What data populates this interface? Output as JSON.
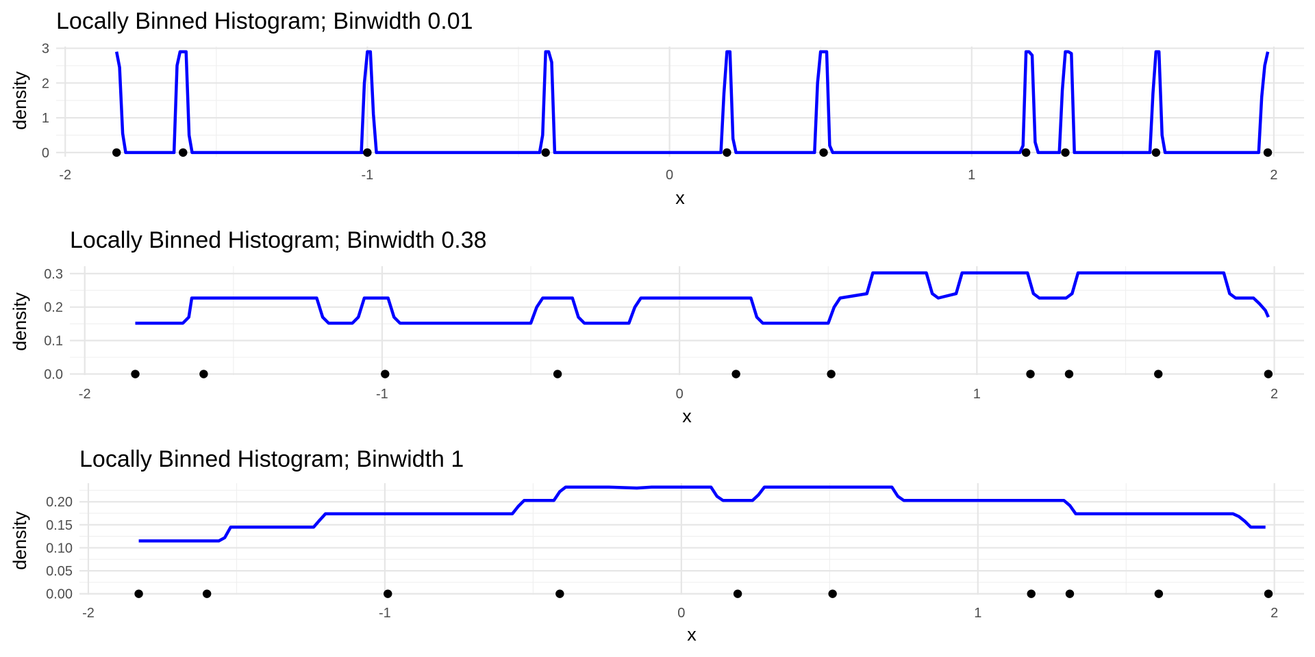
{
  "chart_data": [
    {
      "type": "line",
      "title": "Locally Binned Histogram; Binwidth 0.01",
      "xlabel": "x",
      "ylabel": "density",
      "xlim": [
        -2.03,
        2.1
      ],
      "ylim": [
        -0.12,
        3.05
      ],
      "x_ticks": [
        -2,
        -1,
        0,
        1,
        2
      ],
      "x_tick_labels": [
        "-2",
        "-1",
        "0",
        "1",
        "2"
      ],
      "x_minor_ticks": [
        -1.5,
        -0.5,
        0.5,
        1.5
      ],
      "y_ticks": [
        0,
        1,
        2,
        3
      ],
      "y_tick_labels": [
        "0",
        "1",
        "2",
        "3"
      ],
      "y_minor_ticks": [
        0.5,
        1.5,
        2.5
      ],
      "grid": true,
      "series": [
        {
          "x": [
            -1.83,
            -1.82,
            -1.81,
            -1.8,
            -1.79,
            -1.65,
            -1.64,
            -1.63,
            -1.62,
            -1.61,
            -1.6,
            -1.59,
            -1.58,
            -1.0,
            -1.02,
            -1.01,
            -1.0,
            -0.99,
            -0.98,
            -0.97,
            -0.44,
            -0.43,
            -0.42,
            -0.41,
            -0.4,
            -0.39,
            -0.38,
            0.16,
            0.17,
            0.18,
            0.19,
            0.2,
            0.21,
            0.22,
            0.48,
            0.49,
            0.5,
            0.51,
            0.52,
            0.53,
            0.54,
            1.16,
            1.17,
            1.18,
            1.19,
            1.2,
            1.21,
            1.22,
            1.29,
            1.3,
            1.31,
            1.32,
            1.33,
            1.34,
            1.35,
            1.59,
            1.6,
            1.61,
            1.62,
            1.63,
            1.64,
            1.65,
            1.95,
            1.96,
            1.97,
            1.98
          ],
          "y": [
            2.9,
            2.45,
            0.55,
            0,
            0,
            0,
            0,
            2.5,
            2.9,
            2.9,
            2.9,
            0.5,
            0,
            0,
            0,
            2.0,
            2.9,
            2.9,
            1.1,
            0,
            0,
            0,
            0.5,
            2.9,
            2.9,
            2.6,
            0,
            0,
            0,
            1.7,
            2.9,
            2.9,
            0.4,
            0,
            0,
            2.0,
            2.9,
            2.9,
            2.9,
            0.2,
            0,
            0,
            0.2,
            2.9,
            2.9,
            2.8,
            0.3,
            0,
            0,
            1.8,
            2.9,
            2.9,
            2.85,
            0,
            0,
            0,
            1.7,
            2.9,
            2.9,
            0.5,
            0,
            0,
            0,
            1.6,
            2.5,
            2.9
          ]
        }
      ],
      "points_x": [
        -1.83,
        -1.61,
        -1.0,
        -0.41,
        0.19,
        0.51,
        1.18,
        1.31,
        1.61,
        1.98
      ],
      "points_y": [
        0,
        0,
        0,
        0,
        0,
        0,
        0,
        0,
        0,
        0
      ],
      "colors": {
        "line": "#0000ff",
        "points": "#000000"
      }
    },
    {
      "type": "line",
      "title": "Locally Binned Histogram; Binwidth 0.38",
      "xlabel": "x",
      "ylabel": "density",
      "xlim": [
        -2.05,
        2.1
      ],
      "ylim": [
        -0.003,
        0.322
      ],
      "x_ticks": [
        -2,
        -1,
        0,
        1,
        2
      ],
      "x_tick_labels": [
        "-2",
        "-1",
        "0",
        "1",
        "2"
      ],
      "x_minor_ticks": [
        -1.5,
        -0.5,
        0.5,
        1.5
      ],
      "y_ticks": [
        0,
        0.1,
        0.2,
        0.3
      ],
      "y_tick_labels": [
        "0.0",
        "0.1",
        "0.2",
        "0.3"
      ],
      "y_minor_ticks": [
        0.05,
        0.15,
        0.25
      ],
      "grid": true,
      "series": [
        {
          "x": [
            -1.83,
            -1.67,
            -1.65,
            -1.64,
            -1.22,
            -1.2,
            -1.18,
            -1.1,
            -1.08,
            -1.06,
            -0.98,
            -0.96,
            -0.94,
            -0.5,
            -0.48,
            -0.46,
            -0.36,
            -0.34,
            -0.32,
            -0.17,
            -0.15,
            -0.13,
            0.24,
            0.26,
            0.28,
            0.5,
            0.52,
            0.54,
            0.63,
            0.65,
            0.67,
            0.83,
            0.85,
            0.87,
            0.93,
            0.95,
            0.97,
            1.17,
            1.19,
            1.21,
            1.3,
            1.32,
            1.34,
            1.83,
            1.85,
            1.87,
            1.93,
            1.95,
            1.97,
            1.98
          ],
          "y": [
            0.152,
            0.152,
            0.17,
            0.227,
            0.227,
            0.17,
            0.152,
            0.152,
            0.17,
            0.227,
            0.227,
            0.17,
            0.152,
            0.152,
            0.2,
            0.227,
            0.227,
            0.17,
            0.152,
            0.152,
            0.2,
            0.227,
            0.227,
            0.17,
            0.152,
            0.152,
            0.2,
            0.227,
            0.24,
            0.302,
            0.302,
            0.302,
            0.24,
            0.227,
            0.24,
            0.302,
            0.302,
            0.302,
            0.24,
            0.227,
            0.227,
            0.24,
            0.302,
            0.302,
            0.24,
            0.227,
            0.227,
            0.21,
            0.19,
            0.17
          ]
        }
      ],
      "points_x": [
        -1.83,
        -1.6,
        -0.99,
        -0.41,
        0.19,
        0.51,
        1.18,
        1.31,
        1.61,
        1.98
      ],
      "points_y": [
        0,
        0,
        0,
        0,
        0,
        0,
        0,
        0,
        0,
        0
      ],
      "colors": {
        "line": "#0000ff",
        "points": "#000000"
      }
    },
    {
      "type": "line",
      "title": "Locally Binned Histogram; Binwidth 1",
      "xlabel": "x",
      "ylabel": "density",
      "xlim": [
        -2.03,
        2.1
      ],
      "ylim": [
        -0.002,
        0.2405
      ],
      "x_ticks": [
        -2,
        -1,
        0,
        1,
        2
      ],
      "x_tick_labels": [
        "-2",
        "-1",
        "0",
        "1",
        "2"
      ],
      "x_minor_ticks": [
        -1.5,
        -0.5,
        0.5,
        1.5
      ],
      "y_ticks": [
        0,
        0.05,
        0.1,
        0.15,
        0.2
      ],
      "y_tick_labels": [
        "0.00",
        "0.05",
        "0.10",
        "0.15",
        "0.20"
      ],
      "y_minor_ticks": [
        0.025,
        0.075,
        0.125,
        0.175,
        0.225
      ],
      "grid": true,
      "series": [
        {
          "x": [
            -1.83,
            -1.56,
            -1.54,
            -1.52,
            -1.24,
            -1.22,
            -1.2,
            -0.57,
            -0.55,
            -0.53,
            -0.43,
            -0.41,
            -0.39,
            -0.25,
            -0.15,
            -0.1,
            0.1,
            0.12,
            0.14,
            0.24,
            0.26,
            0.28,
            0.71,
            0.73,
            0.75,
            1.29,
            1.31,
            1.33,
            1.86,
            1.88,
            1.9,
            1.92,
            1.97
          ],
          "y": [
            0.115,
            0.115,
            0.122,
            0.145,
            0.145,
            0.16,
            0.174,
            0.174,
            0.19,
            0.203,
            0.203,
            0.222,
            0.232,
            0.232,
            0.23,
            0.232,
            0.232,
            0.212,
            0.203,
            0.203,
            0.215,
            0.232,
            0.232,
            0.212,
            0.203,
            0.203,
            0.192,
            0.174,
            0.174,
            0.168,
            0.158,
            0.145,
            0.145
          ]
        }
      ],
      "points_x": [
        -1.83,
        -1.6,
        -0.99,
        -0.41,
        0.19,
        0.51,
        1.18,
        1.31,
        1.61,
        1.98
      ],
      "points_y": [
        0,
        0,
        0,
        0,
        0,
        0,
        0,
        0,
        0,
        0
      ],
      "colors": {
        "line": "#0000ff",
        "points": "#000000"
      }
    }
  ]
}
